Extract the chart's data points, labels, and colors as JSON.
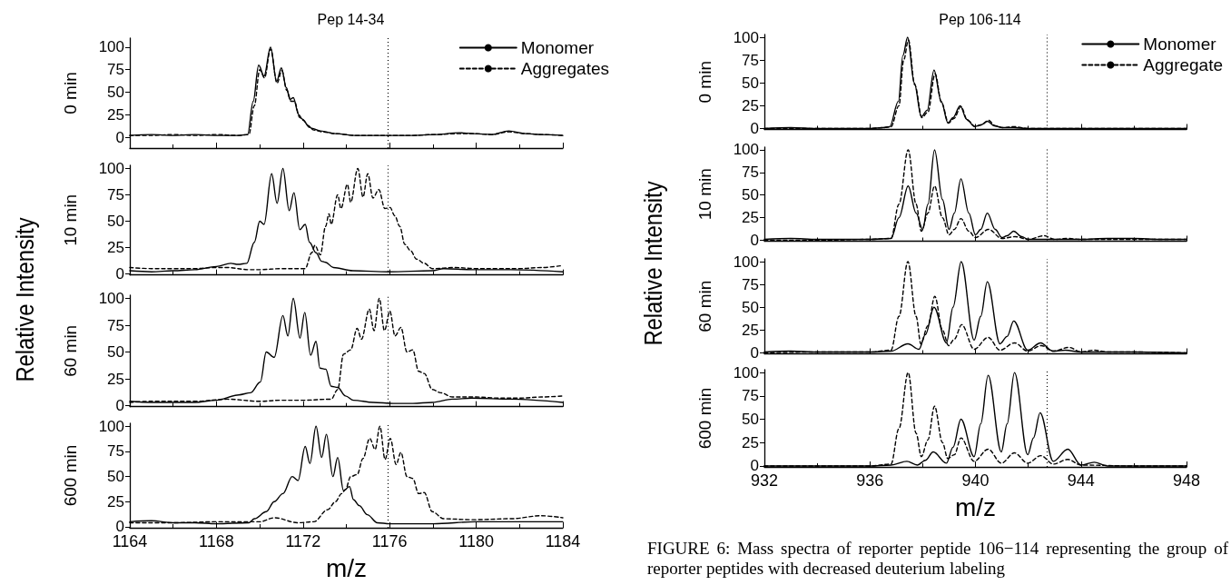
{
  "chart_data": [
    {
      "type": "line",
      "title": "Pep 14-34",
      "ylabel": "0 min",
      "xlim": [
        1164,
        1184
      ],
      "xticks": [
        1164,
        1168,
        1172,
        1176,
        1180,
        1184
      ],
      "ylim": [
        -12,
        110
      ],
      "yticks": [
        0,
        25,
        50,
        75,
        100
      ],
      "tick_labels": "y",
      "legend": "top right",
      "marker": "none",
      "ref_lines": [
        {
          "axis": "x",
          "value": 1175.9,
          "line_style": "dotted",
          "color": "#000000"
        }
      ],
      "series": [
        {
          "name": "Monomer",
          "color": "#000000",
          "line_style": "solid",
          "x": [
            1164,
            1165,
            1166,
            1167,
            1168,
            1169,
            1169.44,
            1169.7,
            1169.95,
            1170.2,
            1170.5,
            1170.78,
            1171.0,
            1171.23,
            1171.4,
            1171.55,
            1171.8,
            1171.97,
            1172.24,
            1172.4,
            1172.8,
            1173.5,
            1174.4,
            1175,
            1176.3,
            1177,
            1178.1,
            1179.2,
            1179.9,
            1180.7,
            1181.5,
            1182.3,
            1183,
            1184
          ],
          "values": [
            2,
            3,
            2,
            3,
            2,
            2,
            3,
            40,
            80,
            68,
            100,
            62,
            77,
            55,
            42,
            44,
            25,
            20,
            13,
            10,
            7,
            4,
            2,
            2,
            2,
            2,
            3,
            5,
            4,
            3,
            7,
            4,
            3,
            2
          ]
        },
        {
          "name": "Aggregates",
          "color": "#000000",
          "line_style": "dashed",
          "x": [
            1164,
            1165,
            1166,
            1167,
            1168,
            1169,
            1169.5,
            1169.75,
            1170.0,
            1170.22,
            1170.5,
            1170.8,
            1171.02,
            1171.25,
            1171.45,
            1171.6,
            1171.85,
            1172.0,
            1172.3,
            1172.5,
            1172.9,
            1173.5,
            1174.4,
            1175,
            1176.3,
            1177,
            1178.1,
            1179.2,
            1179.9,
            1180.7,
            1181.5,
            1182.3,
            1183,
            1184
          ],
          "values": [
            2,
            2,
            3,
            2,
            3,
            2,
            3,
            35,
            75,
            66,
            98,
            60,
            74,
            52,
            40,
            40,
            22,
            19,
            11,
            8,
            6,
            4,
            2,
            2,
            2,
            2,
            3,
            4,
            4,
            3,
            6,
            4,
            3,
            2
          ]
        }
      ]
    },
    {
      "type": "line",
      "ylabel": "10 min",
      "xlim": [
        1164,
        1184
      ],
      "xticks": [
        1164,
        1168,
        1172,
        1176,
        1180,
        1184
      ],
      "ylim": [
        -1,
        103
      ],
      "yticks": [
        0,
        25,
        50,
        75,
        100
      ],
      "tick_labels": "y",
      "marker": "none",
      "annotations": [
        "Relative Intensity"
      ],
      "ref_lines": [
        {
          "axis": "x",
          "value": 1175.9,
          "line_style": "dotted",
          "color": "#000000"
        }
      ],
      "series": [
        {
          "color": "#000000",
          "line_style": "solid",
          "x": [
            1164,
            1165,
            1166,
            1167,
            1168,
            1168.66,
            1169.0,
            1169.4,
            1169.75,
            1170.0,
            1170.2,
            1170.55,
            1170.8,
            1171.07,
            1171.36,
            1171.58,
            1171.85,
            1172.1,
            1172.3,
            1172.6,
            1172.86,
            1173.04,
            1173.4,
            1174.3,
            1175.96,
            1177.97,
            1178.5,
            1179.8,
            1181.6,
            1184
          ],
          "values": [
            3,
            2,
            3,
            4,
            7,
            10,
            9,
            10,
            30,
            50,
            47,
            95,
            67,
            100,
            60,
            77,
            42,
            47,
            30,
            20,
            12,
            11,
            6,
            3,
            2,
            3,
            5,
            4,
            4,
            2
          ]
        },
        {
          "color": "#000000",
          "line_style": "dashed",
          "x": [
            1164,
            1165,
            1166,
            1167,
            1168,
            1168.5,
            1169.5,
            1170,
            1171,
            1172.1,
            1172.4,
            1172.55,
            1172.8,
            1173.04,
            1173.2,
            1173.3,
            1173.6,
            1173.75,
            1174.05,
            1174.2,
            1174.53,
            1174.77,
            1174.99,
            1175.23,
            1175.5,
            1175.78,
            1176.02,
            1176.24,
            1176.47,
            1176.7,
            1176.97,
            1177.24,
            1177.6,
            1177.97,
            1179,
            1180,
            1181,
            1182,
            1183,
            1184
          ],
          "values": [
            6,
            5,
            5,
            5,
            6,
            6,
            4,
            4,
            5,
            5,
            20,
            27,
            18,
            45,
            57,
            47,
            75,
            62,
            85,
            68,
            100,
            73,
            95,
            72,
            80,
            62,
            63,
            55,
            45,
            28,
            22,
            14,
            10,
            5,
            6,
            5,
            5,
            5,
            6,
            8
          ]
        }
      ]
    },
    {
      "type": "line",
      "ylabel": "60 min",
      "xlim": [
        1164,
        1184
      ],
      "xticks": [
        1164,
        1168,
        1172,
        1176,
        1180,
        1184
      ],
      "ylim": [
        -1,
        103
      ],
      "yticks": [
        0,
        25,
        50,
        75,
        100
      ],
      "tick_labels": "y",
      "marker": "none",
      "ref_lines": [
        {
          "axis": "x",
          "value": 1175.9,
          "line_style": "dotted",
          "color": "#000000"
        }
      ],
      "series": [
        {
          "color": "#000000",
          "line_style": "solid",
          "x": [
            1164,
            1165,
            1166,
            1167,
            1168,
            1169.03,
            1169.58,
            1170.03,
            1170.3,
            1170.67,
            1171.07,
            1171.3,
            1171.55,
            1171.86,
            1172.08,
            1172.35,
            1172.6,
            1172.78,
            1173.05,
            1173.3,
            1173.6,
            1173.96,
            1174.33,
            1175.24,
            1176.16,
            1177.07,
            1177.98,
            1178.9,
            1179.8,
            1181.6,
            1184
          ],
          "values": [
            4,
            3,
            3,
            3,
            5,
            10,
            12,
            22,
            50,
            45,
            84,
            65,
            100,
            63,
            87,
            47,
            60,
            35,
            34,
            18,
            17,
            9,
            5,
            3,
            2,
            2,
            3,
            6,
            7,
            6,
            3
          ]
        },
        {
          "color": "#000000",
          "line_style": "dashed",
          "x": [
            1164,
            1165,
            1167,
            1168.5,
            1170,
            1171,
            1172,
            1173.3,
            1173.6,
            1173.87,
            1174.2,
            1174.5,
            1174.7,
            1175.06,
            1175.28,
            1175.52,
            1175.76,
            1176.01,
            1176.25,
            1176.52,
            1176.8,
            1177.07,
            1177.34,
            1177.6,
            1177.97,
            1178.35,
            1178.9,
            1180,
            1181,
            1182,
            1183,
            1184
          ],
          "values": [
            3,
            4,
            4,
            6,
            4,
            5,
            5,
            6,
            15,
            48,
            52,
            72,
            62,
            90,
            70,
            100,
            70,
            88,
            65,
            73,
            50,
            52,
            32,
            30,
            15,
            12,
            8,
            8,
            7,
            7,
            8,
            9
          ]
        }
      ]
    },
    {
      "type": "line",
      "ylabel": "600 min",
      "xlabel": "m/z",
      "xlim": [
        1164,
        1184
      ],
      "xticks": [
        1164,
        1168,
        1172,
        1176,
        1180,
        1184
      ],
      "ylim": [
        -1,
        103
      ],
      "yticks": [
        0,
        25,
        50,
        75,
        100
      ],
      "marker": "none",
      "ref_lines": [
        {
          "axis": "x",
          "value": 1175.9,
          "line_style": "dotted",
          "color": "#000000"
        }
      ],
      "series": [
        {
          "color": "#000000",
          "line_style": "solid",
          "x": [
            1164,
            1165,
            1166,
            1167,
            1168,
            1169.5,
            1169.76,
            1170.3,
            1170.67,
            1171.07,
            1171.5,
            1171.77,
            1172.1,
            1172.32,
            1172.6,
            1172.86,
            1173.08,
            1173.38,
            1173.6,
            1173.87,
            1174.15,
            1174.33,
            1174.6,
            1174.97,
            1175.43,
            1176,
            1178,
            1180,
            1182,
            1184
          ],
          "values": [
            5,
            6,
            4,
            4,
            3,
            4,
            8,
            15,
            25,
            33,
            50,
            46,
            80,
            63,
            100,
            69,
            92,
            50,
            69,
            36,
            40,
            27,
            21,
            12,
            4,
            3,
            3,
            5,
            5,
            5
          ]
        },
        {
          "color": "#000000",
          "line_style": "dashed",
          "x": [
            1164,
            1166,
            1168,
            1170,
            1170.67,
            1171.77,
            1172.5,
            1173.14,
            1173.5,
            1173.78,
            1173.96,
            1174.2,
            1174.5,
            1174.77,
            1175.08,
            1175.33,
            1175.55,
            1175.79,
            1176.03,
            1176.3,
            1176.52,
            1176.8,
            1177.07,
            1177.34,
            1177.6,
            1177.97,
            1178.5,
            1179.8,
            1181.6,
            1183,
            1184
          ],
          "values": [
            4,
            4,
            5,
            5,
            9,
            4,
            5,
            17,
            25,
            33,
            37,
            50,
            52,
            68,
            88,
            77,
            100,
            67,
            88,
            62,
            74,
            50,
            48,
            33,
            34,
            15,
            8,
            7,
            8,
            11,
            9
          ]
        }
      ]
    },
    {
      "type": "line",
      "title": "Pep 106-114",
      "ylabel": "0 min",
      "xlim": [
        932,
        948
      ],
      "xticks": [
        932,
        936,
        940,
        944,
        948
      ],
      "ylim": [
        -1,
        103
      ],
      "yticks": [
        0,
        25,
        50,
        75,
        100
      ],
      "tick_labels": "y",
      "legend": "top right",
      "marker": "none",
      "ref_lines": [
        {
          "axis": "x",
          "value": 942.7,
          "line_style": "dotted",
          "color": "#000000"
        }
      ],
      "series": [
        {
          "name": "Monomer",
          "color": "#000000",
          "line_style": "solid",
          "x": [
            932,
            933,
            934,
            935,
            936,
            936.5,
            936.75,
            937.08,
            937.25,
            937.43,
            937.68,
            937.95,
            938.17,
            938.43,
            938.7,
            938.96,
            939.15,
            939.42,
            939.67,
            939.97,
            940.2,
            940.45,
            940.72,
            941.02,
            941.46,
            942,
            943,
            944,
            945,
            946,
            947,
            948
          ],
          "values": [
            0,
            1,
            0,
            0,
            0,
            1,
            2,
            30,
            80,
            100,
            50,
            13,
            20,
            64,
            30,
            6,
            12,
            25,
            10,
            2,
            4,
            8,
            3,
            1,
            1,
            0,
            0,
            0,
            0,
            0,
            0,
            0
          ]
        },
        {
          "name": "Aggregate",
          "color": "#000000",
          "line_style": "dashed",
          "x": [
            932,
            934,
            936,
            936.5,
            936.8,
            937.1,
            937.28,
            937.46,
            937.7,
            937.97,
            938.2,
            938.47,
            938.72,
            938.98,
            939.18,
            939.45,
            939.7,
            940,
            940.22,
            940.5,
            940.75,
            941.05,
            941.46,
            942,
            944,
            946,
            948
          ],
          "values": [
            0,
            0,
            0,
            1,
            2,
            25,
            75,
            97,
            48,
            12,
            18,
            60,
            28,
            6,
            11,
            24,
            9,
            2,
            4,
            9,
            3,
            1,
            2,
            0,
            0,
            0,
            0
          ]
        }
      ]
    },
    {
      "type": "line",
      "ylabel": "10 min",
      "xlim": [
        932,
        948
      ],
      "xticks": [
        932,
        936,
        940,
        944,
        948
      ],
      "ylim": [
        -1,
        103
      ],
      "yticks": [
        0,
        25,
        50,
        75,
        100
      ],
      "tick_labels": "y",
      "marker": "none",
      "annotations": [
        "Relative Intensity"
      ],
      "ref_lines": [
        {
          "axis": "x",
          "value": 942.7,
          "line_style": "dotted",
          "color": "#000000"
        }
      ],
      "series": [
        {
          "color": "#000000",
          "line_style": "solid",
          "x": [
            932,
            933,
            934,
            935,
            936,
            936.8,
            937.1,
            937.45,
            937.75,
            938.0,
            938.2,
            938.45,
            938.75,
            939.0,
            939.2,
            939.45,
            939.75,
            940.0,
            940.2,
            940.45,
            940.75,
            941.0,
            941.2,
            941.45,
            941.75,
            942,
            943,
            944,
            945,
            946,
            947,
            948
          ],
          "values": [
            1,
            2,
            1,
            1,
            1,
            2,
            25,
            60,
            30,
            12,
            40,
            100,
            45,
            12,
            30,
            68,
            30,
            6,
            12,
            30,
            12,
            3,
            5,
            10,
            4,
            1,
            1,
            1,
            2,
            2,
            1,
            1
          ]
        },
        {
          "color": "#000000",
          "line_style": "dashed",
          "x": [
            932,
            934,
            936,
            936.8,
            937.1,
            937.45,
            937.75,
            937.95,
            938.2,
            938.45,
            938.75,
            939.0,
            939.2,
            939.45,
            939.75,
            940.0,
            940.5,
            941.0,
            941.5,
            942,
            942.6,
            943,
            943.5,
            944,
            946,
            948
          ],
          "values": [
            0,
            0,
            1,
            2,
            40,
            100,
            40,
            10,
            30,
            60,
            25,
            6,
            12,
            24,
            10,
            3,
            12,
            2,
            4,
            1,
            5,
            1,
            2,
            1,
            1,
            1
          ]
        }
      ]
    },
    {
      "type": "line",
      "ylabel": "60 min",
      "xlim": [
        932,
        948
      ],
      "xticks": [
        932,
        936,
        940,
        944,
        948
      ],
      "ylim": [
        -1,
        103
      ],
      "yticks": [
        0,
        25,
        50,
        75,
        100
      ],
      "tick_labels": "y",
      "marker": "none",
      "ref_lines": [
        {
          "axis": "x",
          "value": 942.7,
          "line_style": "dotted",
          "color": "#000000"
        }
      ],
      "series": [
        {
          "color": "#000000",
          "line_style": "solid",
          "x": [
            932,
            933,
            934,
            935,
            936,
            936.8,
            937.44,
            937.86,
            938.1,
            938.43,
            938.9,
            939.15,
            939.46,
            939.95,
            940.2,
            940.45,
            940.93,
            941.2,
            941.45,
            941.98,
            942.47,
            942.94,
            943.4,
            944,
            945,
            946,
            948
          ],
          "values": [
            1,
            2,
            1,
            1,
            1,
            2,
            10,
            4,
            20,
            50,
            11,
            50,
            100,
            14,
            40,
            78,
            10,
            18,
            35,
            3,
            11,
            2,
            3,
            1,
            1,
            1,
            0
          ]
        },
        {
          "color": "#000000",
          "line_style": "dashed",
          "x": [
            932,
            934,
            936,
            936.8,
            937.1,
            937.44,
            937.75,
            937.93,
            938.2,
            938.46,
            938.75,
            938.98,
            939.2,
            939.48,
            939.95,
            940.48,
            940.93,
            941.48,
            941.98,
            942.5,
            942.94,
            943.55,
            944,
            944.5,
            945,
            946,
            948
          ],
          "values": [
            0,
            1,
            1,
            3,
            40,
            100,
            40,
            10,
            30,
            62,
            25,
            8,
            15,
            31,
            4,
            17,
            3,
            11,
            2,
            8,
            2,
            6,
            1,
            3,
            1,
            1,
            0
          ]
        }
      ]
    },
    {
      "type": "line",
      "ylabel": "600 min",
      "xlabel": "m/z",
      "xlim": [
        932,
        948
      ],
      "xticks": [
        932,
        936,
        940,
        944,
        948
      ],
      "ylim": [
        -1,
        103
      ],
      "yticks": [
        0,
        25,
        50,
        75,
        100
      ],
      "marker": "none",
      "annotations": [
        "FIGURE 6: Mass spectra of reporter peptide 106−114 representing the group of reporter peptides with decreased deuterium labeling"
      ],
      "ref_lines": [
        {
          "axis": "x",
          "value": 942.7,
          "line_style": "dotted",
          "color": "#000000"
        }
      ],
      "series": [
        {
          "color": "#000000",
          "line_style": "solid",
          "x": [
            932,
            934,
            936,
            936.8,
            937.4,
            937.8,
            938.1,
            938.4,
            938.9,
            939.15,
            939.45,
            939.95,
            940.2,
            940.48,
            940.98,
            941.2,
            941.48,
            941.98,
            942.2,
            942.45,
            942.95,
            943.5,
            944,
            944.5,
            945,
            946,
            948
          ],
          "values": [
            0,
            0,
            0,
            1,
            5,
            1,
            6,
            15,
            3,
            20,
            50,
            10,
            45,
            97,
            15,
            45,
            100,
            12,
            30,
            57,
            5,
            18,
            1,
            4,
            0,
            0,
            0
          ]
        },
        {
          "color": "#000000",
          "line_style": "dashed",
          "x": [
            932,
            934,
            936,
            936.8,
            937.1,
            937.45,
            937.75,
            937.95,
            938.2,
            938.45,
            938.75,
            938.95,
            939.2,
            939.45,
            939.95,
            940.48,
            940.98,
            941.48,
            941.98,
            942.48,
            942.95,
            943.5,
            944,
            946,
            948
          ],
          "values": [
            0,
            0,
            0,
            2,
            40,
            100,
            35,
            10,
            28,
            64,
            25,
            8,
            12,
            30,
            5,
            18,
            3,
            14,
            3,
            11,
            2,
            7,
            1,
            0,
            0
          ]
        }
      ]
    }
  ]
}
